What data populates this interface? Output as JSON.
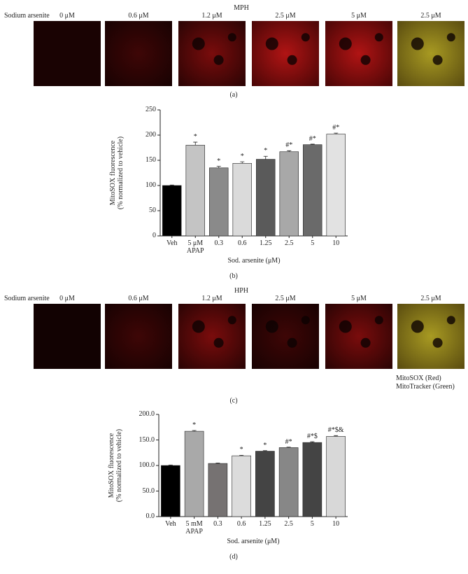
{
  "panel_a": {
    "title": "MPH",
    "row_label": "Sodium arsenite",
    "conditions": [
      "0 μM",
      "0.6 μM",
      "1.2 μM",
      "2.5 μM",
      "5 μM",
      "2.5 μM"
    ],
    "label": "(a)"
  },
  "panel_c": {
    "title": "HPH",
    "row_label": "Sodium arsenite",
    "conditions": [
      "0 μM",
      "0.6 μM",
      "1.2 μM",
      "2.5 μM",
      "5 μM",
      "2.5 μM"
    ],
    "legend": [
      "MitoSOX (Red)",
      "MitoTracker (Green)"
    ],
    "label": "(c)"
  },
  "chart_data": [
    {
      "type": "bar",
      "panel_label": "(b)",
      "y_label": "MitoSOX fluorescence\n(% normalized to vehicle)",
      "x_label": "Sod. arsenite (μM)",
      "categories": [
        "Veh",
        "5 μM\nAPAP",
        "0.3",
        "0.6",
        "1.25",
        "2.5",
        "5",
        "10"
      ],
      "values": [
        100,
        180,
        135,
        144,
        152,
        167,
        181,
        202
      ],
      "errors": [
        1,
        6,
        3,
        3,
        6,
        2,
        1,
        2
      ],
      "annotations": [
        null,
        "*",
        "*",
        "*",
        "*",
        "#*",
        "#*",
        "#*"
      ],
      "colors": [
        "#000000",
        "#c4c4c4",
        "#8a8a8a",
        "#dadada",
        "#5a5a5a",
        "#a8a8a8",
        "#6a6a6a",
        "#e2e2e2"
      ],
      "ylim": [
        0,
        250
      ],
      "yticks": [
        0,
        50,
        100,
        150,
        200,
        250
      ]
    },
    {
      "type": "bar",
      "panel_label": "(d)",
      "y_label": "MitoSOX fluorescence\n(% normalized to vehicle)",
      "x_label": "Sod. arsenite (μM)",
      "categories": [
        "Veh",
        "5 mM\nAPAP",
        "0.3",
        "0.6",
        "1.25",
        "2.5",
        "5",
        "10"
      ],
      "values": [
        100,
        167,
        104,
        119,
        128,
        135,
        145,
        157
      ],
      "errors": [
        1,
        1.5,
        1,
        1,
        1,
        1,
        1.5,
        1.5
      ],
      "annotations": [
        null,
        "*",
        null,
        "*",
        "*",
        "#*",
        "#*$",
        "#*$&"
      ],
      "colors": [
        "#000000",
        "#a9a9a9",
        "#767272",
        "#dcdcdc",
        "#444444",
        "#878787",
        "#444444",
        "#d8d8d8"
      ],
      "ylim": [
        0,
        200
      ],
      "yticks": [
        {
          "value": 0,
          "label": "0.0"
        },
        {
          "value": 50,
          "label": "50.0"
        },
        {
          "value": 100,
          "label": "100.0"
        },
        {
          "value": 150,
          "label": "150.0"
        },
        {
          "value": 200,
          "label": "200.0"
        }
      ]
    }
  ]
}
